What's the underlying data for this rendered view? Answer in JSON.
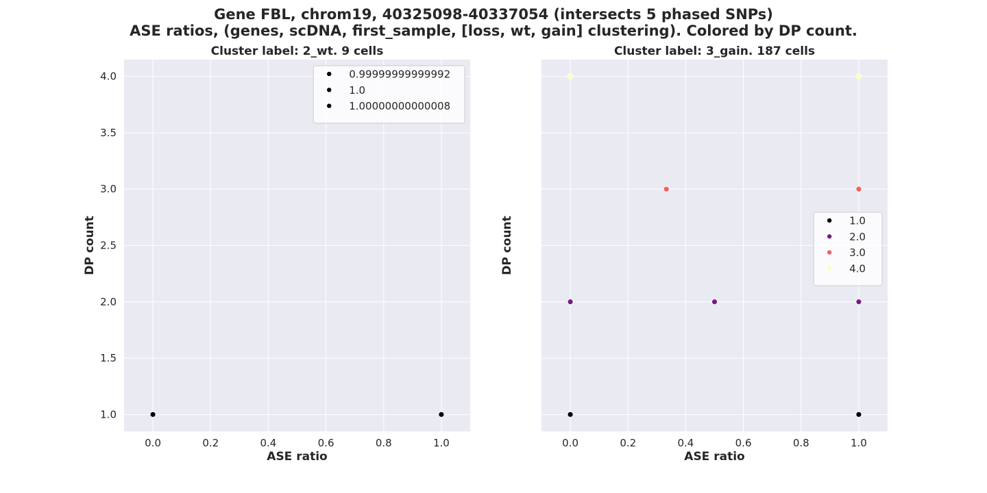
{
  "figure": {
    "title_line1": "Gene FBL, chrom19, 40325098-40337054 (intersects 5 phased SNPs)",
    "title_line2": "ASE ratios, (genes, scDNA, first_sample, [loss, wt, gain] clustering). Colored by DP count."
  },
  "chart_data": [
    {
      "type": "scatter",
      "title": "Cluster label: 2_wt. 9 cells",
      "xlabel": "ASE ratio",
      "ylabel": "DP count",
      "xlim": [
        -0.1,
        1.1
      ],
      "ylim": [
        0.85,
        4.15
      ],
      "xticks": [
        "0.0",
        "0.2",
        "0.4",
        "0.6",
        "0.8",
        "1.0"
      ],
      "yticks": [
        "1.0",
        "1.5",
        "2.0",
        "2.5",
        "3.0",
        "3.5",
        "4.0"
      ],
      "grid": true,
      "legend_position": "upper right",
      "series": [
        {
          "name": "0.99999999999992",
          "color": "#000004",
          "points": []
        },
        {
          "name": "1.0",
          "color": "#000004",
          "points": [
            {
              "x": 0.0,
              "y": 1.0
            },
            {
              "x": 1.0,
              "y": 1.0
            }
          ]
        },
        {
          "name": "1.00000000000008",
          "color": "#000004",
          "points": []
        }
      ]
    },
    {
      "type": "scatter",
      "title": "Cluster label: 3_gain. 187 cells",
      "xlabel": "ASE ratio",
      "ylabel": "DP count",
      "xlim": [
        -0.1,
        1.1
      ],
      "ylim": [
        0.85,
        4.15
      ],
      "xticks": [
        "0.0",
        "0.2",
        "0.4",
        "0.6",
        "0.8",
        "1.0"
      ],
      "yticks": [],
      "grid": true,
      "legend_position": "center right",
      "series": [
        {
          "name": "1.0",
          "color": "#000004",
          "points": [
            {
              "x": 0.0,
              "y": 1.0
            },
            {
              "x": 1.0,
              "y": 1.0
            }
          ]
        },
        {
          "name": "2.0",
          "color": "#721f81",
          "points": [
            {
              "x": 0.0,
              "y": 2.0
            },
            {
              "x": 0.5,
              "y": 2.0
            },
            {
              "x": 1.0,
              "y": 2.0
            }
          ]
        },
        {
          "name": "3.0",
          "color": "#f1605d",
          "points": [
            {
              "x": 0.333,
              "y": 3.0
            },
            {
              "x": 1.0,
              "y": 3.0
            }
          ]
        },
        {
          "name": "4.0",
          "color": "#fcfdbf",
          "points": [
            {
              "x": 0.0,
              "y": 4.0
            },
            {
              "x": 1.0,
              "y": 4.0
            }
          ]
        }
      ]
    }
  ]
}
